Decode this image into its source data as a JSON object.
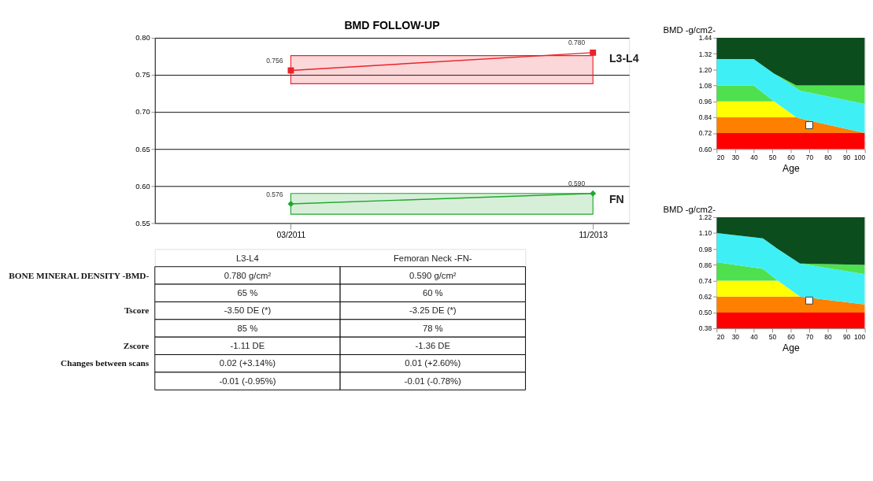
{
  "chart_data": [
    {
      "type": "line",
      "title": "BMD FOLLOW-UP",
      "categories": [
        "03/2011",
        "11/2013"
      ],
      "ylim": [
        0.55,
        0.8
      ],
      "yticks": [
        0.55,
        {
          "value": 0.6,
          "label": "0.60"
        },
        0.65,
        {
          "value": 0.7,
          "label": "0.70"
        },
        0.75,
        {
          "value": 0.8,
          "label": "0.80"
        }
      ],
      "grid": "y",
      "series": [
        {
          "name": "L3-L4",
          "color": "#e8242a",
          "marker": "square",
          "values": [
            0.756,
            0.78
          ],
          "value_labels": [
            "0.756",
            "0.780"
          ]
        },
        {
          "name": "FN",
          "color": "#1fa82c",
          "marker": "diamond",
          "values": [
            0.576,
            0.59
          ],
          "value_labels": [
            "0.576",
            "0.590"
          ]
        }
      ],
      "bands": [
        {
          "axis": "y",
          "from": 0.738,
          "to": 0.776,
          "color": "#e8242a"
        },
        {
          "axis": "y",
          "from": 0.562,
          "to": 0.59,
          "color": "#1fa82c"
        }
      ]
    },
    {
      "type": "other",
      "categories": [
        "L3-L4",
        "Femoran Neck -FN-"
      ],
      "y_categories": [
        "BONE MINERAL DENSITY -BMD-",
        null,
        "Tscore",
        null,
        "Zscore",
        "Changes between scans",
        null
      ],
      "cell_labels": [
        [
          "0.780 g/cm²",
          "0.590 g/cm²"
        ],
        [
          "65 %",
          "60 %"
        ],
        [
          "-3.50 DE (*)",
          "-3.25 DE (*)"
        ],
        [
          "85 %",
          "78 %"
        ],
        [
          "-1.11 DE",
          "-1.36 DE"
        ],
        [
          "0.02 (+3.14%)",
          "0.01 (+2.60%)"
        ],
        [
          "-0.01 (-0.95%)",
          "-0.01 (-0.78%)"
        ]
      ]
    },
    {
      "type": "area",
      "xlabel": "Age",
      "ylabel": "BMD -g/cm2-",
      "xlim": [
        20,
        100
      ],
      "xticks": [
        20,
        30,
        40,
        50,
        60,
        70,
        80,
        90,
        100
      ],
      "ylim": [
        0.6,
        1.44
      ],
      "yticks": [
        {
          "value": 0.6,
          "label": "0.60"
        },
        0.72,
        0.84,
        0.96,
        1.08,
        {
          "value": 1.2,
          "label": "1.20"
        },
        1.32,
        1.44
      ],
      "grid": false,
      "x": [
        20,
        40,
        51,
        63,
        65,
        100
      ],
      "series": [
        {
          "color": "#ff0000",
          "values": [
            0.72,
            0.72,
            0.72,
            0.72,
            0.72,
            0.72
          ]
        },
        {
          "color": "#ff8000",
          "values": [
            0.84,
            0.84,
            0.84,
            0.84,
            0.83,
            0.72
          ]
        },
        {
          "color": "#ffff00",
          "values": [
            0.96,
            0.96,
            0.96,
            0.84,
            0.83,
            0.72
          ]
        },
        {
          "color": "#4fe04f",
          "values": [
            1.08,
            1.08,
            0.96,
            0.84,
            0.83,
            0.72
          ]
        },
        {
          "color": "#3ef0f5",
          "values": [
            1.28,
            1.28,
            1.17,
            1.06,
            1.04,
            0.94
          ]
        },
        {
          "color": "#4fe04f",
          "values": [
            1.28,
            1.28,
            1.17,
            1.08,
            1.08,
            1.08
          ]
        },
        {
          "color": "#0b4d1c",
          "values": [
            1.44,
            1.44,
            1.44,
            1.44,
            1.44,
            1.44
          ]
        },
        {
          "type": "scatter",
          "color": "#ffffff",
          "marker": "square",
          "x": [
            70
          ],
          "values": [
            0.78
          ]
        }
      ]
    },
    {
      "type": "area",
      "xlabel": "Age",
      "ylabel": "BMD -g/cm2-",
      "xlim": [
        20,
        100
      ],
      "xticks": [
        20,
        30,
        40,
        50,
        60,
        70,
        80,
        90,
        100
      ],
      "ylim": [
        0.38,
        1.22
      ],
      "yticks": [
        0.38,
        {
          "value": 0.5,
          "label": "0.50"
        },
        0.62,
        0.74,
        0.86,
        0.98,
        {
          "value": 1.1,
          "label": "1.10"
        },
        1.22
      ],
      "grid": false,
      "x": [
        20,
        45,
        53,
        65,
        100
      ],
      "series": [
        {
          "color": "#ff0000",
          "values": [
            0.5,
            0.5,
            0.5,
            0.5,
            0.5
          ]
        },
        {
          "color": "#ff8000",
          "values": [
            0.62,
            0.62,
            0.62,
            0.62,
            0.56
          ]
        },
        {
          "color": "#ffff00",
          "values": [
            0.74,
            0.74,
            0.74,
            0.62,
            0.56
          ]
        },
        {
          "color": "#4fe04f",
          "values": [
            0.88,
            0.83,
            0.74,
            0.62,
            0.56
          ]
        },
        {
          "color": "#3ef0f5",
          "values": [
            1.1,
            1.06,
            0.98,
            0.87,
            0.79
          ]
        },
        {
          "color": "#4fe04f",
          "values": [
            1.1,
            1.06,
            0.98,
            0.87,
            0.86
          ]
        },
        {
          "color": "#0b4d1c",
          "values": [
            1.22,
            1.22,
            1.22,
            1.22,
            1.22
          ]
        },
        {
          "type": "scatter",
          "color": "#ffffff",
          "marker": "square",
          "x": [
            70
          ],
          "values": [
            0.59
          ]
        }
      ]
    }
  ]
}
